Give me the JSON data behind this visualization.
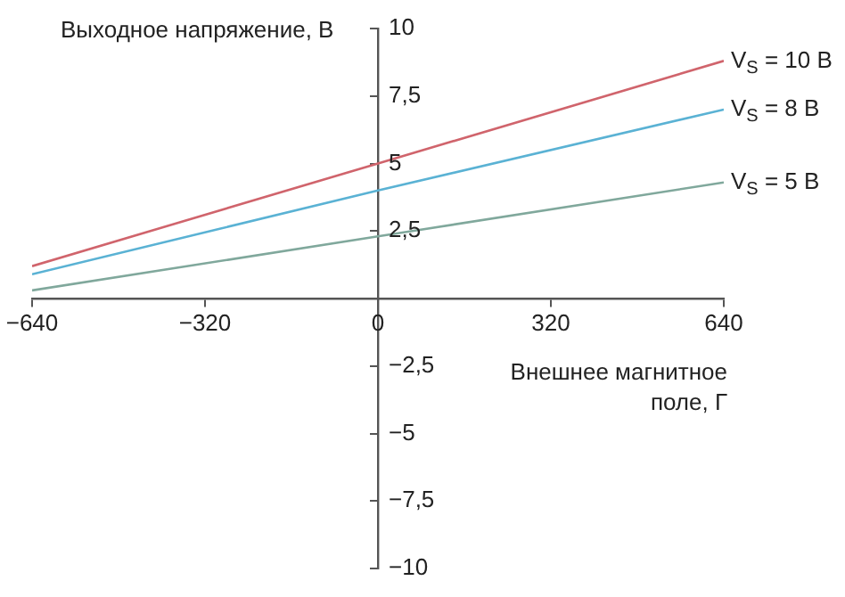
{
  "chart_data": {
    "type": "line",
    "ylabel": "Выходное напряжение, В",
    "xlabel": "Внешнее магнитное поле, Г",
    "x": [
      -640,
      0,
      640
    ],
    "xlim": [
      -640,
      640
    ],
    "xticks": [
      {
        "value": -640,
        "label": "−640"
      },
      {
        "value": -320,
        "label": "−320"
      },
      0,
      320,
      640
    ],
    "ylim": [
      -10,
      10
    ],
    "yticks": [
      {
        "value": -10,
        "label": "−10"
      },
      {
        "value": -7.5,
        "label": "−7,5"
      },
      {
        "value": -5,
        "label": "−5"
      },
      {
        "value": -2.5,
        "label": "−2,5"
      },
      {
        "value": 2.5,
        "label": "2,5"
      },
      5,
      {
        "value": 7.5,
        "label": "7,5"
      },
      10
    ],
    "grid": false,
    "legend": false,
    "marker": "none",
    "series": [
      {
        "name": "V$_{S}$ = 10 В",
        "color": "#d0646c",
        "values": [
          1.2,
          5,
          8.8
        ]
      },
      {
        "name": "V$_{S}$ = 8 В",
        "color": "#5ab2d4",
        "values": [
          0.9,
          4,
          7
        ]
      },
      {
        "name": "V$_{S}$ = 5 В",
        "color": "#80a89c",
        "values": [
          0.3,
          2.3,
          4.3
        ]
      }
    ]
  }
}
